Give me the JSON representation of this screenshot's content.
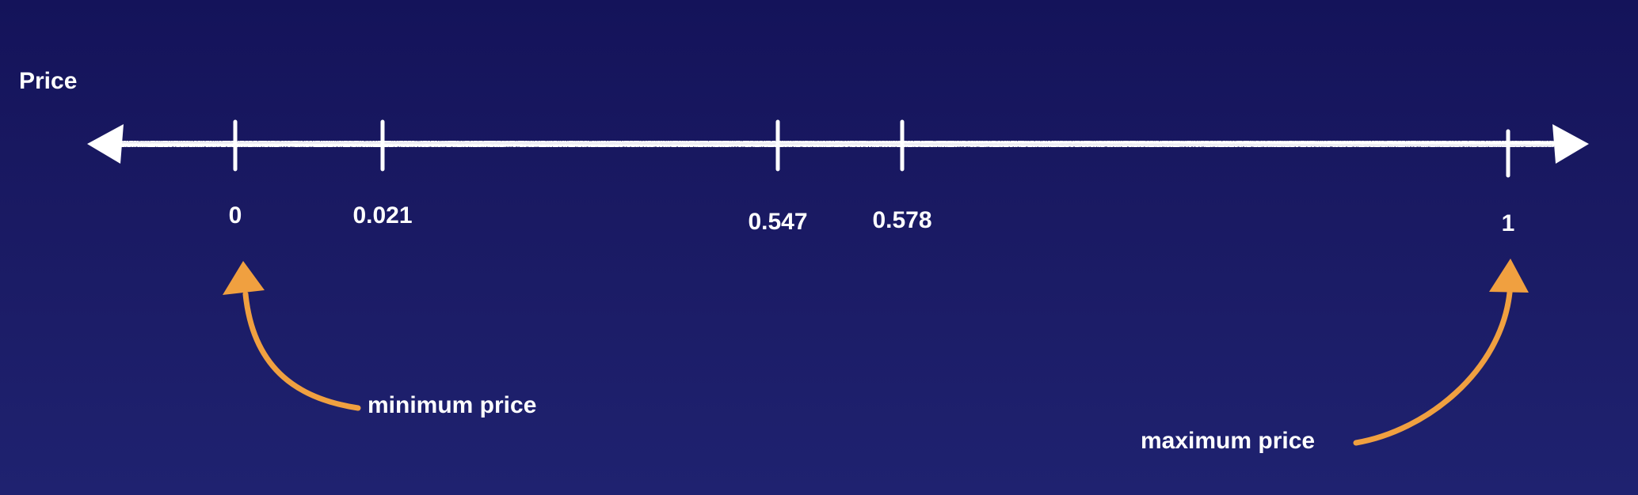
{
  "axis": {
    "title": "Price",
    "ticks": [
      {
        "label": "0",
        "value": 0
      },
      {
        "label": "0.021",
        "value": 0.021
      },
      {
        "label": "0.547",
        "value": 0.547
      },
      {
        "label": "0.578",
        "value": 0.578
      },
      {
        "label": "1",
        "value": 1
      }
    ]
  },
  "annotations": {
    "min_label": "minimum price",
    "max_label": "maximum price"
  },
  "colors": {
    "background_top": "#14135a",
    "background_bottom": "#1f2270",
    "line": "#ffffff",
    "arrow_accent": "#f0a040"
  }
}
